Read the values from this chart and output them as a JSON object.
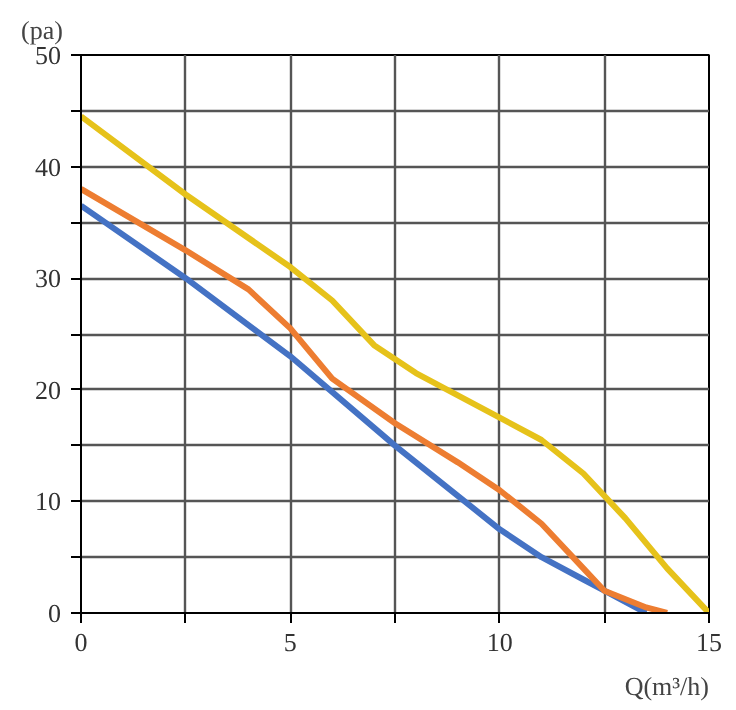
{
  "chart_data": {
    "type": "line",
    "xlabel": "Q(m³/h)",
    "ylabel": "(pa)",
    "xlim": [
      0,
      15
    ],
    "ylim": [
      0,
      50
    ],
    "xticks": [
      0,
      {
        "value": 2.5,
        "label": null
      },
      5,
      {
        "value": 7.5,
        "label": null
      },
      10,
      {
        "value": 12.5,
        "label": null
      },
      15
    ],
    "yticks": [
      0,
      {
        "value": 5,
        "label": null
      },
      10,
      {
        "value": 15,
        "label": null
      },
      20,
      {
        "value": 25,
        "label": null
      },
      30,
      {
        "value": 35,
        "label": null
      },
      40,
      {
        "value": 45,
        "label": null
      },
      50
    ],
    "grid": true,
    "marker": "none",
    "line_style": "solid",
    "series": [
      {
        "color": "#4472c4",
        "x": [
          0,
          2.5,
          5,
          7.5,
          9,
          10,
          11,
          12,
          12.5,
          13.5
        ],
        "values": [
          36.5,
          30,
          23,
          15,
          10.5,
          7.5,
          5,
          3,
          2,
          0
        ]
      },
      {
        "color": "#ed7d31",
        "x": [
          0,
          2.5,
          4,
          5,
          6,
          7.5,
          9,
          10,
          11,
          12,
          12.5,
          13.5,
          14
        ],
        "values": [
          38,
          32.5,
          29,
          25.5,
          21,
          17,
          13.5,
          11,
          8,
          4,
          2,
          0.5,
          0
        ]
      },
      {
        "color": "#e6c21a",
        "x": [
          0,
          2.5,
          5,
          6,
          7,
          8,
          9,
          10,
          11,
          12,
          13,
          14,
          15
        ],
        "values": [
          44.5,
          37.5,
          31,
          28,
          24,
          21.5,
          19.5,
          17.5,
          15.5,
          12.5,
          8.5,
          4,
          0
        ]
      }
    ]
  }
}
